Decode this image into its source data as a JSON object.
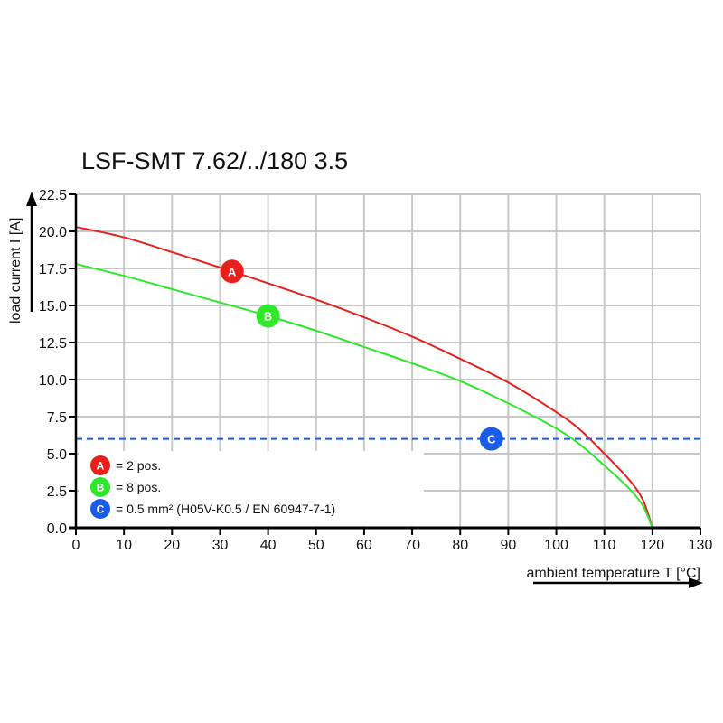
{
  "chart_data": {
    "type": "line",
    "title": "LSF-SMT 7.62/../180 3.5",
    "xlabel": "ambient temperature T [°C]",
    "ylabel": "load current I [A]",
    "xlim": [
      0,
      130
    ],
    "ylim": [
      0,
      22.5
    ],
    "xticks": [
      "0",
      "10",
      "20",
      "30",
      "40",
      "50",
      "60",
      "70",
      "80",
      "90",
      "100",
      "110",
      "120",
      "130"
    ],
    "yticks": [
      "0.0",
      "2.5",
      "5.0",
      "7.5",
      "10.0",
      "12.5",
      "15.0",
      "17.5",
      "20.0",
      "22.5"
    ],
    "grid": true,
    "legend_position": "bottom-left",
    "series": [
      {
        "name": "A",
        "label": "= 2 pos.",
        "color": "#e8201c",
        "x": [
          0,
          10,
          20,
          32.5,
          40,
          50,
          60,
          70,
          80,
          90,
          100,
          105,
          110,
          115,
          118,
          120
        ],
        "y": [
          20.3,
          19.6,
          18.6,
          17.3,
          16.5,
          15.4,
          14.2,
          12.9,
          11.4,
          9.8,
          7.8,
          6.6,
          5.0,
          3.3,
          1.9,
          0
        ]
      },
      {
        "name": "B",
        "label": "= 8 pos.",
        "color": "#2ee82a",
        "x": [
          0,
          10,
          20,
          30,
          40,
          50,
          60,
          70,
          80,
          90,
          100,
          105,
          110,
          115,
          118,
          120
        ],
        "y": [
          17.8,
          17.0,
          16.1,
          15.2,
          14.3,
          13.3,
          12.2,
          11.1,
          9.9,
          8.4,
          6.7,
          5.6,
          4.2,
          2.7,
          1.5,
          0
        ]
      },
      {
        "name": "C",
        "label": "= 0.5 mm² (H05V-K0.5 / EN 60947-7-1)",
        "color": "#1a5ce8",
        "style": "dashed",
        "x": [
          0,
          130
        ],
        "y": [
          6.0,
          6.0
        ]
      }
    ],
    "markers": [
      {
        "letter": "A",
        "x": 32.5,
        "y": 17.3,
        "color": "#e8201c"
      },
      {
        "letter": "B",
        "x": 40,
        "y": 14.3,
        "color": "#2ee82a"
      },
      {
        "letter": "C",
        "x": 86.5,
        "y": 6.0,
        "color": "#1a5ce8"
      }
    ]
  }
}
